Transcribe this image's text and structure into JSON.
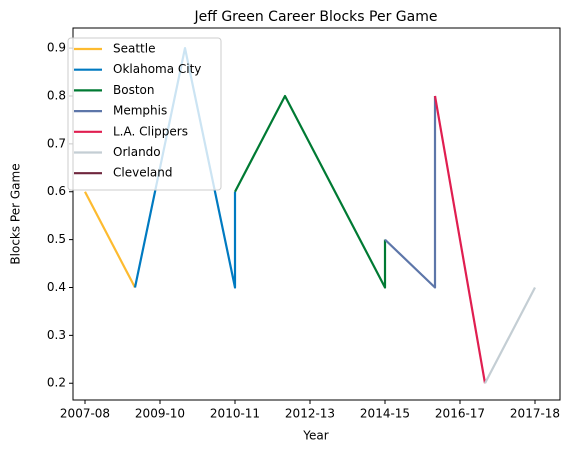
{
  "chart_data": {
    "type": "line",
    "title": "Jeff Green  Career Blocks Per Game",
    "x_label": "Year",
    "y_label": "Blocks Per Game",
    "xlim": [
      -0.24,
      9.5
    ],
    "ylim": [
      0.165,
      0.942
    ],
    "xticks": [
      {
        "value": 0,
        "label": "2007-08"
      },
      {
        "value": 1.5,
        "label": "2009-10"
      },
      {
        "value": 3,
        "label": "2010-11"
      },
      {
        "value": 4.5,
        "label": "2012-13"
      },
      {
        "value": 6,
        "label": "2014-15"
      },
      {
        "value": 7.5,
        "label": "2016-17"
      },
      {
        "value": 9,
        "label": "2017-18"
      }
    ],
    "yticks": [
      0.2,
      0.3,
      0.4,
      0.5,
      0.6,
      0.7,
      0.8,
      0.9
    ],
    "legend": "upper left",
    "grid": false,
    "series": [
      {
        "name": "Seattle",
        "color": "#fdbb30",
        "x": [
          0,
          1
        ],
        "values": [
          0.6,
          0.4
        ]
      },
      {
        "name": "Oklahoma City",
        "color": "#007ac1",
        "x": [
          1,
          2,
          3,
          3
        ],
        "values": [
          0.4,
          0.9,
          0.4,
          0.6
        ]
      },
      {
        "name": "Boston",
        "color": "#007a33",
        "x": [
          3,
          4,
          6,
          6
        ],
        "values": [
          0.6,
          0.8,
          0.4,
          0.5
        ]
      },
      {
        "name": "Memphis",
        "color": "#5d76a9",
        "x": [
          6,
          7,
          7
        ],
        "values": [
          0.5,
          0.4,
          0.8
        ]
      },
      {
        "name": "L.A. Clippers",
        "color": "#e01e50",
        "x": [
          7,
          8
        ],
        "values": [
          0.8,
          0.2
        ]
      },
      {
        "name": "Orlando",
        "color": "#c4ced4",
        "x": [
          8,
          9
        ],
        "values": [
          0.2,
          0.4
        ]
      },
      {
        "name": "Cleveland",
        "color": "#6f263d",
        "x": [
          9
        ],
        "values": [
          0.4
        ]
      }
    ]
  }
}
